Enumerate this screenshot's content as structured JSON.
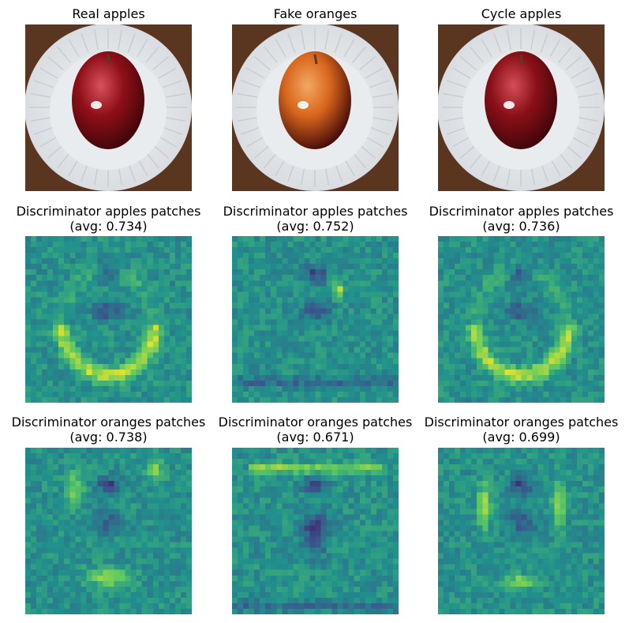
{
  "chart_data": {
    "type": "heatmap",
    "colormap": "viridis",
    "value_range": [
      0,
      1
    ],
    "grid": "off",
    "axes": "off",
    "rows": [
      {
        "panels": [
          {
            "title": "Real apples",
            "kind": "image",
            "fruit_color": "#8e0f18",
            "highlight": "#d9505a"
          },
          {
            "title": "Fake oranges",
            "kind": "image",
            "fruit_color": "#d8661c",
            "highlight": "#f3a863"
          },
          {
            "title": "Cycle apples",
            "kind": "image",
            "fruit_color": "#8a1018",
            "highlight": "#d44d57"
          }
        ]
      },
      {
        "panels": [
          {
            "title_line1": "Discriminator apples patches",
            "title_line2": "(avg: 0.734)",
            "avg": 0.734,
            "kind": "heatmap",
            "cells": 30,
            "bright": "bottom-arc"
          },
          {
            "title_line1": "Discriminator apples patches",
            "title_line2": "(avg: 0.752)",
            "avg": 0.752,
            "kind": "heatmap",
            "cells": 30,
            "bright": "center-spot"
          },
          {
            "title_line1": "Discriminator apples patches",
            "title_line2": "(avg: 0.736)",
            "avg": 0.736,
            "kind": "heatmap",
            "cells": 30,
            "bright": "bottom-arc"
          }
        ]
      },
      {
        "panels": [
          {
            "title_line1": "Discriminator oranges patches",
            "title_line2": "(avg: 0.738)",
            "avg": 0.738,
            "kind": "heatmap",
            "cells": 30,
            "bright": "bottom-blob"
          },
          {
            "title_line1": "Discriminator oranges patches",
            "title_line2": "(avg: 0.671)",
            "avg": 0.671,
            "kind": "heatmap",
            "cells": 30,
            "bright": "top-band"
          },
          {
            "title_line1": "Discriminator oranges patches",
            "title_line2": "(avg: 0.699)",
            "avg": 0.699,
            "kind": "heatmap",
            "cells": 30,
            "bright": "side-arcs"
          }
        ]
      }
    ]
  }
}
